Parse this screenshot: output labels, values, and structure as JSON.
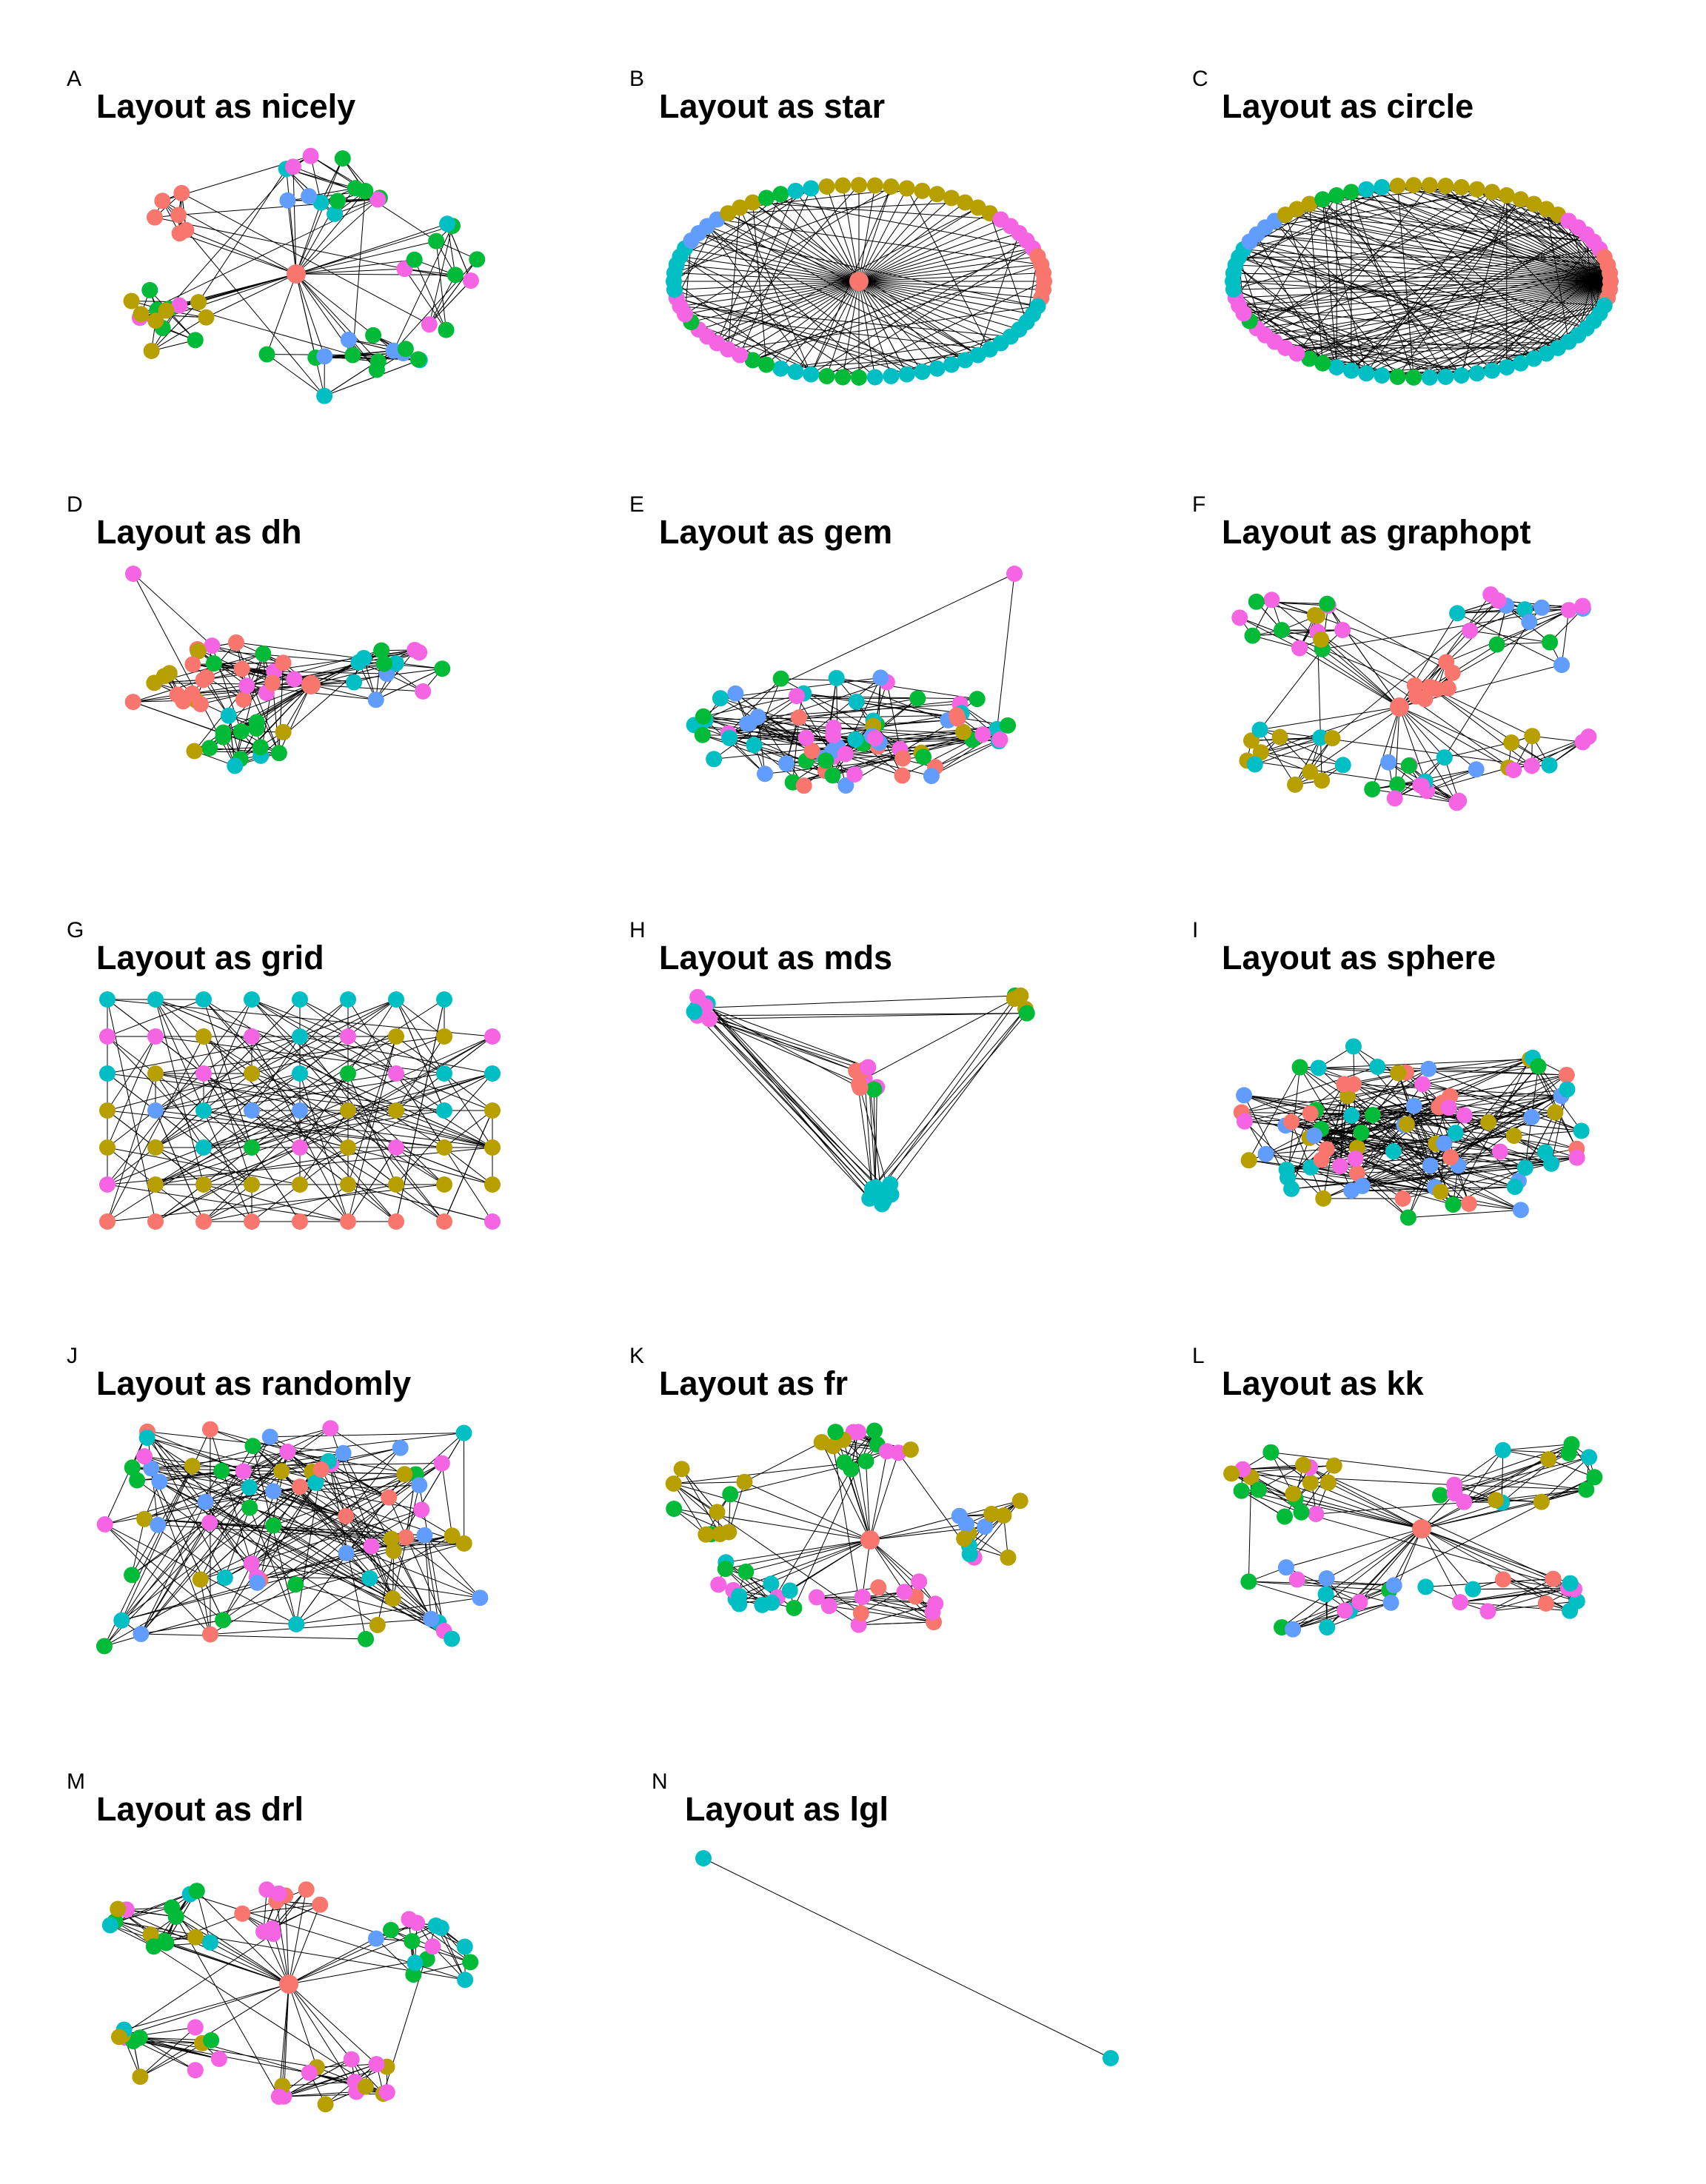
{
  "figure": {
    "palette": {
      "salmon": "#F8766D",
      "olive": "#B79F00",
      "green": "#00BA38",
      "cyan": "#00BFC4",
      "blue": "#619CFF",
      "magenta": "#F564E3"
    },
    "edge_color": "#000000",
    "panels": [
      {
        "letter": "A",
        "title": "Layout as nicely",
        "layout": "nicely"
      },
      {
        "letter": "B",
        "title": "Layout as star",
        "layout": "star"
      },
      {
        "letter": "C",
        "title": "Layout as circle",
        "layout": "circle"
      },
      {
        "letter": "D",
        "title": "Layout as dh",
        "layout": "dh"
      },
      {
        "letter": "E",
        "title": "Layout as gem",
        "layout": "gem"
      },
      {
        "letter": "F",
        "title": "Layout as graphopt",
        "layout": "graphopt"
      },
      {
        "letter": "G",
        "title": "Layout as grid",
        "layout": "grid"
      },
      {
        "letter": "H",
        "title": "Layout as mds",
        "layout": "mds"
      },
      {
        "letter": "I",
        "title": "Layout as sphere",
        "layout": "sphere"
      },
      {
        "letter": "J",
        "title": "Layout as randomly",
        "layout": "randomly"
      },
      {
        "letter": "K",
        "title": "Layout as fr",
        "layout": "fr"
      },
      {
        "letter": "L",
        "title": "Layout as kk",
        "layout": "kk"
      },
      {
        "letter": "M",
        "title": "Layout as drl",
        "layout": "drl"
      },
      {
        "letter": "N",
        "title": "Layout as lgl",
        "layout": "lgl"
      }
    ]
  }
}
